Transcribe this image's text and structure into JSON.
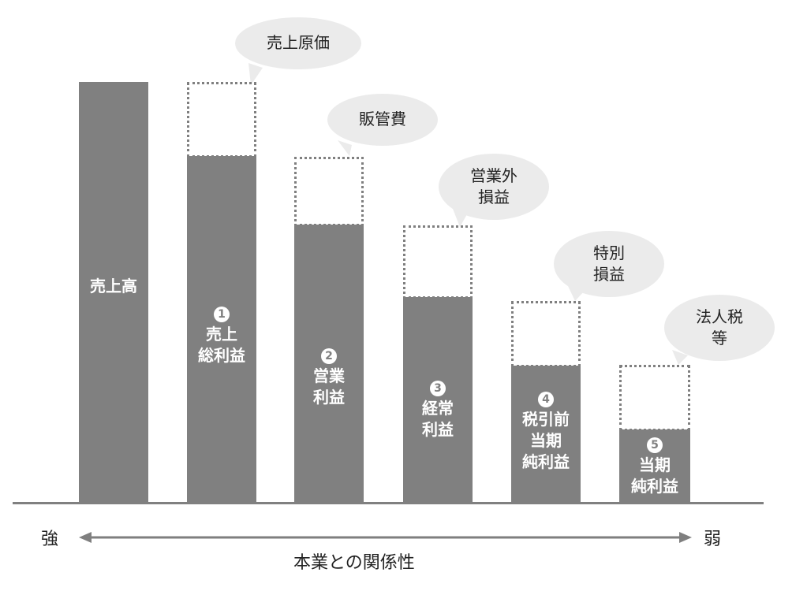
{
  "bars": [
    {
      "name": "bar-uriagedaka",
      "num": "",
      "lines": [
        "売上高"
      ]
    },
    {
      "name": "bar-uriage-sourieki",
      "num": "1",
      "lines": [
        "売上",
        "総利益"
      ]
    },
    {
      "name": "bar-eigyou-rieki",
      "num": "2",
      "lines": [
        "営業",
        "利益"
      ]
    },
    {
      "name": "bar-keijou-rieki",
      "num": "3",
      "lines": [
        "経常",
        "利益"
      ]
    },
    {
      "name": "bar-zeibikimae-junrieki",
      "num": "4",
      "lines": [
        "税引前",
        "当期",
        "純利益"
      ]
    },
    {
      "name": "bar-touki-junrieki",
      "num": "5",
      "lines": [
        "当期",
        "純利益"
      ]
    }
  ],
  "deductions": [
    {
      "name": "bubble-uriage-genka",
      "lines": [
        "売上原価"
      ]
    },
    {
      "name": "bubble-hankanhi",
      "lines": [
        "販管費"
      ]
    },
    {
      "name": "bubble-eigyougai-soneki",
      "lines": [
        "営業外",
        "損益"
      ]
    },
    {
      "name": "bubble-tokubetsu-soneki",
      "lines": [
        "特別",
        "損益"
      ]
    },
    {
      "name": "bubble-houjinzei",
      "lines": [
        "法人税",
        "等"
      ]
    }
  ],
  "axis": {
    "left_label": "強",
    "right_label": "弱",
    "title": "本業との関係性"
  },
  "colors": {
    "bar": "#808080",
    "bubble": "#ebebeb",
    "dashed_border": "#7f7f7f",
    "text": "#222222"
  }
}
